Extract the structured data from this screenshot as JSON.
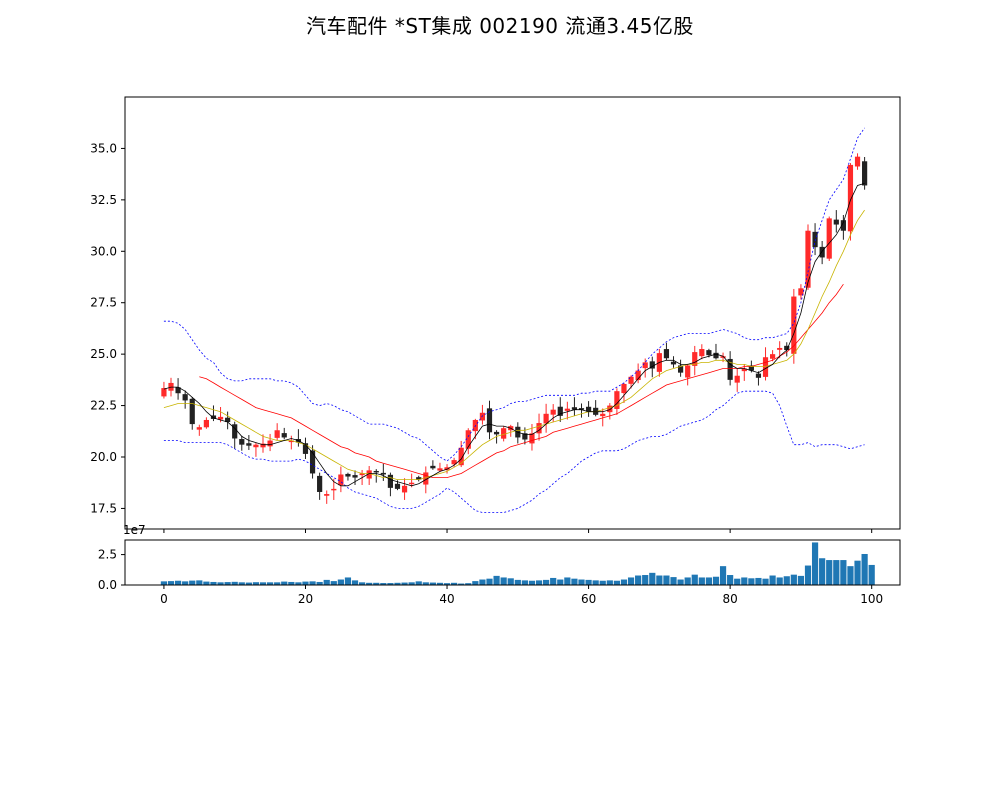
{
  "title": "汽车配件 *ST集成 002190 流通3.45亿股",
  "colors": {
    "up": "#ff2a2a",
    "down": "#222222",
    "ma_short": "#000000",
    "ma_mid": "#c8b400",
    "ma_long": "#ff0000",
    "boll": "#0000ff",
    "volume": "#1f77b4"
  },
  "chart_data": [
    {
      "type": "candlestick",
      "x_ticks": [
        0,
        20,
        40,
        60,
        80,
        100
      ],
      "y_ticks": [
        "17.5",
        "20.0",
        "22.5",
        "25.0",
        "27.5",
        "30.0",
        "32.5",
        "35.0"
      ],
      "xlim": [
        -5.5,
        104
      ],
      "ylim": [
        16.5,
        37.5
      ],
      "close": [
        23.35,
        23.6,
        23.1,
        22.75,
        21.6,
        21.45,
        21.8,
        21.85,
        21.95,
        21.7,
        20.9,
        20.6,
        20.55,
        20.6,
        20.65,
        20.8,
        21.3,
        20.95,
        20.8,
        20.7,
        20.15,
        19.2,
        18.3,
        18.2,
        18.45,
        19.15,
        19.05,
        19.0,
        19.2,
        19.35,
        19.25,
        19.15,
        18.5,
        18.45,
        18.6,
        18.75,
        18.9,
        19.25,
        19.45,
        19.45,
        19.5,
        19.85,
        20.45,
        21.3,
        21.8,
        22.15,
        21.2,
        21.1,
        21.4,
        21.5,
        20.95,
        20.85,
        21.15,
        21.65,
        22.1,
        22.3,
        22.0,
        22.35,
        22.3,
        22.3,
        22.2,
        22.05,
        22.1,
        22.5,
        23.2,
        23.55,
        23.9,
        24.2,
        24.6,
        24.3,
        25.05,
        24.8,
        24.5,
        24.1,
        24.45,
        25.1,
        25.25,
        24.95,
        24.8,
        24.9,
        23.75,
        23.95,
        24.3,
        24.2,
        23.85,
        24.85,
        25.0,
        25.3,
        25.2,
        27.8,
        28.2,
        31.0,
        30.2,
        29.7,
        31.6,
        31.3,
        31.0,
        34.2,
        34.6,
        33.2
      ],
      "ma_short": [
        23.3,
        23.4,
        23.4,
        23.2,
        22.9,
        22.6,
        22.2,
        21.9,
        21.8,
        21.7,
        21.4,
        21.0,
        20.8,
        20.7,
        20.6,
        20.6,
        20.7,
        20.8,
        20.9,
        20.8,
        20.6,
        20.2,
        19.7,
        19.2,
        18.8,
        18.6,
        18.6,
        18.8,
        19.0,
        19.2,
        19.2,
        19.1,
        18.9,
        18.8,
        18.7,
        18.6,
        18.7,
        18.9,
        19.1,
        19.3,
        19.4,
        19.6,
        19.9,
        20.5,
        21.0,
        21.5,
        21.6,
        21.5,
        21.5,
        21.4,
        21.2,
        21.1,
        21.1,
        21.3,
        21.6,
        21.9,
        22.1,
        22.2,
        22.3,
        22.3,
        22.2,
        22.2,
        22.2,
        22.3,
        22.6,
        23.0,
        23.4,
        23.8,
        24.2,
        24.4,
        24.6,
        24.7,
        24.7,
        24.5,
        24.5,
        24.6,
        24.8,
        24.9,
        25.0,
        24.9,
        24.5,
        24.3,
        24.3,
        24.2,
        24.1,
        24.3,
        24.5,
        24.9,
        25.2,
        26.0,
        27.0,
        28.5,
        29.5,
        30.0,
        30.4,
        30.8,
        31.4,
        32.5,
        33.2,
        33.3
      ],
      "ma_mid": [
        22.4,
        22.5,
        22.6,
        22.6,
        22.6,
        22.5,
        22.4,
        22.3,
        22.2,
        22.0,
        21.8,
        21.6,
        21.4,
        21.2,
        21.0,
        20.9,
        20.8,
        20.8,
        20.8,
        20.7,
        20.6,
        20.4,
        20.2,
        20.0,
        19.8,
        19.6,
        19.4,
        19.3,
        19.2,
        19.2,
        19.1,
        19.0,
        19.0,
        18.9,
        18.9,
        18.9,
        18.9,
        19.0,
        19.1,
        19.2,
        19.3,
        19.5,
        19.7,
        20.0,
        20.3,
        20.6,
        20.8,
        21.0,
        21.1,
        21.2,
        21.3,
        21.3,
        21.4,
        21.5,
        21.6,
        21.7,
        21.8,
        21.9,
        22.0,
        22.1,
        22.2,
        22.2,
        22.3,
        22.4,
        22.5,
        22.7,
        22.9,
        23.2,
        23.5,
        23.8,
        24.0,
        24.2,
        24.3,
        24.4,
        24.5,
        24.5,
        24.6,
        24.6,
        24.7,
        24.7,
        24.6,
        24.5,
        24.5,
        24.4,
        24.4,
        24.4,
        24.5,
        24.6,
        24.7,
        25.0,
        25.5,
        26.2,
        27.0,
        27.8,
        28.5,
        29.3,
        30.0,
        30.8,
        31.5,
        32.0
      ],
      "ma_long": [
        null,
        null,
        null,
        null,
        null,
        23.9,
        23.8,
        23.6,
        23.4,
        23.2,
        23.0,
        22.8,
        22.6,
        22.4,
        22.3,
        22.2,
        22.1,
        22.0,
        21.9,
        21.7,
        21.5,
        21.3,
        21.1,
        20.9,
        20.7,
        20.5,
        20.4,
        20.2,
        20.1,
        20.0,
        19.8,
        19.7,
        19.6,
        19.5,
        19.4,
        19.3,
        19.2,
        19.1,
        19.0,
        19.0,
        19.0,
        19.1,
        19.2,
        19.4,
        19.6,
        19.8,
        20.0,
        20.2,
        20.3,
        20.5,
        20.6,
        20.7,
        20.8,
        20.9,
        21.0,
        21.2,
        21.3,
        21.4,
        21.5,
        21.6,
        21.7,
        21.8,
        21.9,
        22.0,
        22.1,
        22.3,
        22.5,
        22.7,
        22.9,
        23.1,
        23.3,
        23.5,
        23.6,
        23.7,
        23.8,
        23.9,
        24.0,
        24.1,
        24.2,
        24.3,
        24.3,
        24.3,
        24.4,
        24.4,
        24.5,
        24.6,
        24.7,
        24.9,
        25.1,
        25.4,
        25.8,
        26.2,
        26.6,
        27.0,
        27.5,
        27.9,
        28.4
      ],
      "boll_upper": [
        26.6,
        26.6,
        26.5,
        26.2,
        25.7,
        25.2,
        24.8,
        24.6,
        24.1,
        23.8,
        23.7,
        23.7,
        23.8,
        23.8,
        23.8,
        23.8,
        23.7,
        23.7,
        23.6,
        23.4,
        23.0,
        22.6,
        22.5,
        22.6,
        22.5,
        22.3,
        22.2,
        22.0,
        21.8,
        21.6,
        21.6,
        21.6,
        21.5,
        21.4,
        21.2,
        21.0,
        20.9,
        20.6,
        20.3,
        20.0,
        19.8,
        20.1,
        20.5,
        21.0,
        21.5,
        22.0,
        22.2,
        22.3,
        22.4,
        22.6,
        22.7,
        22.7,
        22.8,
        22.9,
        23.0,
        23.0,
        23.0,
        23.0,
        23.0,
        23.1,
        23.1,
        23.2,
        23.2,
        23.2,
        23.4,
        23.6,
        23.9,
        24.2,
        24.6,
        25.0,
        25.3,
        25.6,
        25.8,
        25.9,
        26.0,
        26.0,
        26.0,
        26.0,
        26.1,
        26.2,
        26.1,
        26.0,
        25.8,
        25.7,
        25.7,
        25.8,
        25.8,
        25.9,
        26.0,
        26.5,
        27.5,
        29.0,
        30.5,
        31.5,
        32.5,
        33.0,
        33.5,
        34.5,
        35.5,
        36.0
      ],
      "boll_lower": [
        20.8,
        20.8,
        20.8,
        20.7,
        20.7,
        20.7,
        20.7,
        20.7,
        20.7,
        20.6,
        20.4,
        20.2,
        20.0,
        19.9,
        19.9,
        19.8,
        19.8,
        19.8,
        19.8,
        19.9,
        19.8,
        19.6,
        19.4,
        19.2,
        19.0,
        18.8,
        18.5,
        18.3,
        18.2,
        18.1,
        18.0,
        17.8,
        17.6,
        17.5,
        17.5,
        17.5,
        17.6,
        17.8,
        18.0,
        18.2,
        18.5,
        18.3,
        18.0,
        17.7,
        17.4,
        17.3,
        17.3,
        17.3,
        17.3,
        17.4,
        17.5,
        17.7,
        17.9,
        18.2,
        18.4,
        18.7,
        19.0,
        19.2,
        19.5,
        19.8,
        20.0,
        20.2,
        20.3,
        20.3,
        20.3,
        20.4,
        20.6,
        20.8,
        20.9,
        21.0,
        21.0,
        21.1,
        21.3,
        21.5,
        21.6,
        21.7,
        21.8,
        22.0,
        22.3,
        22.5,
        22.8,
        23.1,
        23.2,
        23.2,
        23.2,
        23.2,
        23.1,
        22.5,
        21.5,
        20.6,
        20.6,
        20.7,
        20.5,
        20.6,
        20.6,
        20.6,
        20.5,
        20.4,
        20.5,
        20.6
      ]
    },
    {
      "type": "bar",
      "y_ticks": [
        "0.0",
        "2.5"
      ],
      "x_ticks": [
        "0",
        "20",
        "40",
        "60",
        "80",
        "100"
      ],
      "offset_label": "1e7",
      "ylim": [
        0,
        3.7
      ],
      "volume": [
        0.3,
        0.32,
        0.35,
        0.3,
        0.36,
        0.38,
        0.28,
        0.25,
        0.22,
        0.24,
        0.26,
        0.22,
        0.2,
        0.23,
        0.22,
        0.22,
        0.22,
        0.28,
        0.25,
        0.22,
        0.28,
        0.3,
        0.25,
        0.42,
        0.32,
        0.45,
        0.62,
        0.38,
        0.22,
        0.18,
        0.18,
        0.16,
        0.16,
        0.18,
        0.2,
        0.22,
        0.3,
        0.22,
        0.2,
        0.18,
        0.15,
        0.18,
        0.12,
        0.15,
        0.32,
        0.45,
        0.52,
        0.75,
        0.62,
        0.55,
        0.42,
        0.38,
        0.35,
        0.38,
        0.42,
        0.58,
        0.45,
        0.62,
        0.52,
        0.45,
        0.42,
        0.38,
        0.35,
        0.38,
        0.35,
        0.45,
        0.62,
        0.78,
        0.82,
        1.0,
        0.78,
        0.78,
        0.65,
        0.45,
        0.62,
        0.85,
        0.62,
        0.62,
        0.68,
        1.55,
        0.82,
        0.52,
        0.62,
        0.55,
        0.58,
        0.52,
        0.78,
        0.62,
        0.72,
        0.85,
        0.75,
        1.6,
        3.5,
        2.2,
        2.05,
        2.05,
        2.05,
        1.55,
        2.0,
        2.55,
        1.65
      ]
    }
  ]
}
